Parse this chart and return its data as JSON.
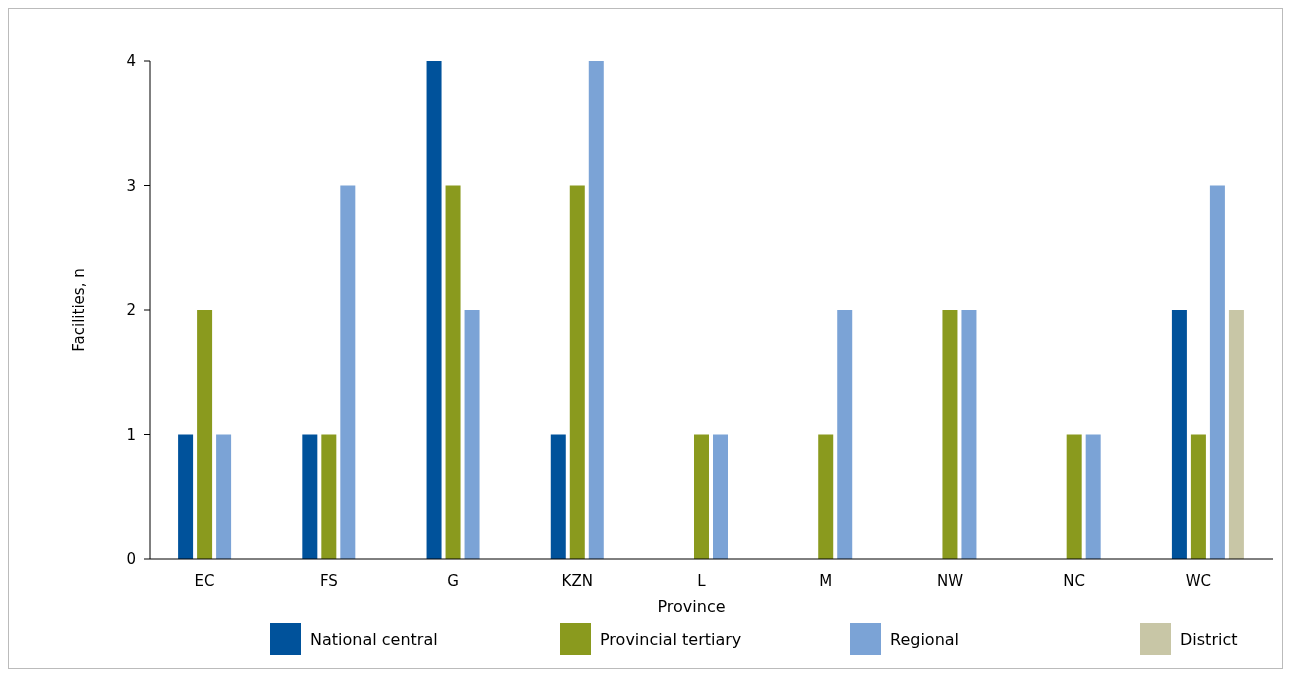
{
  "chart_data": {
    "type": "bar",
    "xlabel": "Province",
    "ylabel": "Facilities, n",
    "categories": [
      "EC",
      "FS",
      "G",
      "KZN",
      "L",
      "M",
      "NW",
      "NC",
      "WC"
    ],
    "series": [
      {
        "name": "National central",
        "color": "#00529b",
        "values": [
          1,
          1,
          4,
          1,
          0,
          0,
          0,
          0,
          2
        ]
      },
      {
        "name": "Provincial tertiary",
        "color": "#8a9a1e",
        "values": [
          2,
          1,
          3,
          3,
          1,
          1,
          2,
          1,
          1
        ]
      },
      {
        "name": "Regional",
        "color": "#7ba3d6",
        "values": [
          1,
          3,
          2,
          4,
          1,
          2,
          2,
          1,
          3
        ]
      },
      {
        "name": "District",
        "color": "#c8c6a6",
        "values": [
          0,
          0,
          0,
          0,
          0,
          0,
          0,
          0,
          2
        ]
      }
    ],
    "ylim": [
      0,
      4
    ],
    "yticks": [
      0,
      1,
      2,
      3,
      4
    ],
    "grid": false,
    "legend": "bottom"
  }
}
